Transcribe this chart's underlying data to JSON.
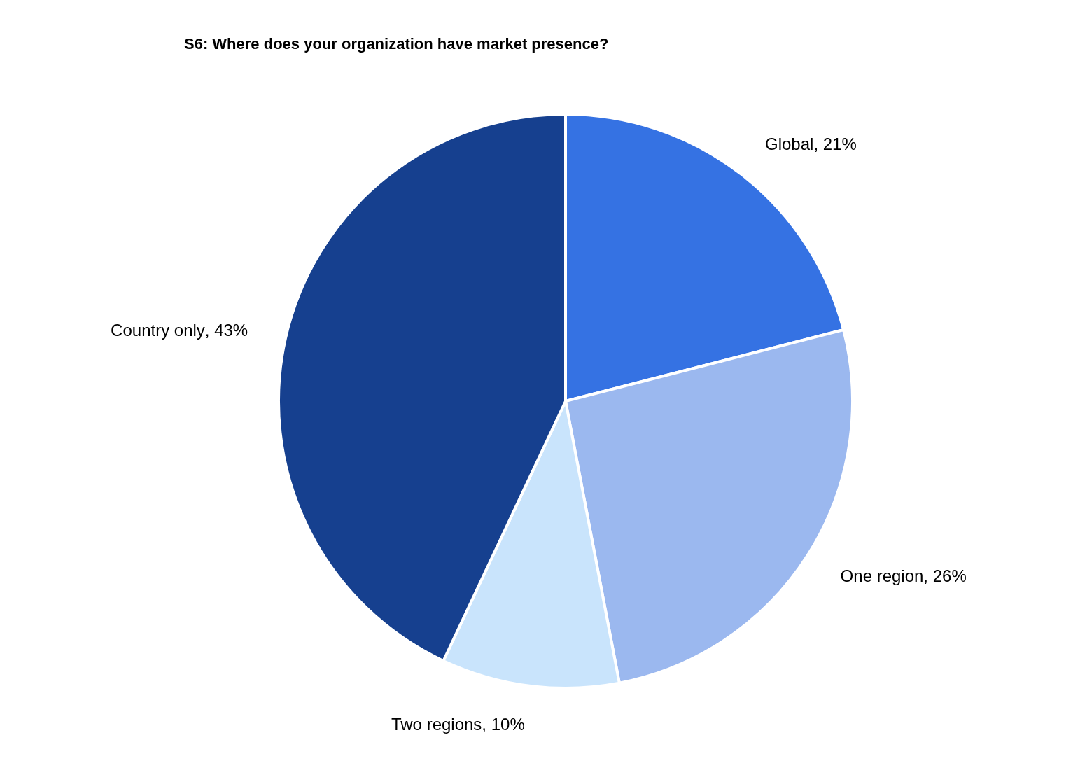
{
  "chart_data": {
    "type": "pie",
    "title": "S6: Where does your organization have market presence?",
    "categories": [
      "Global",
      "One region",
      "Two regions",
      "Country only"
    ],
    "values": [
      21,
      26,
      10,
      43
    ],
    "value_labels": [
      ", 21%",
      ", 26%",
      ", 10%",
      ", 43%"
    ],
    "colors": [
      "#3572e3",
      "#9bb8ef",
      "#c9e4fc",
      "#16408f"
    ]
  }
}
